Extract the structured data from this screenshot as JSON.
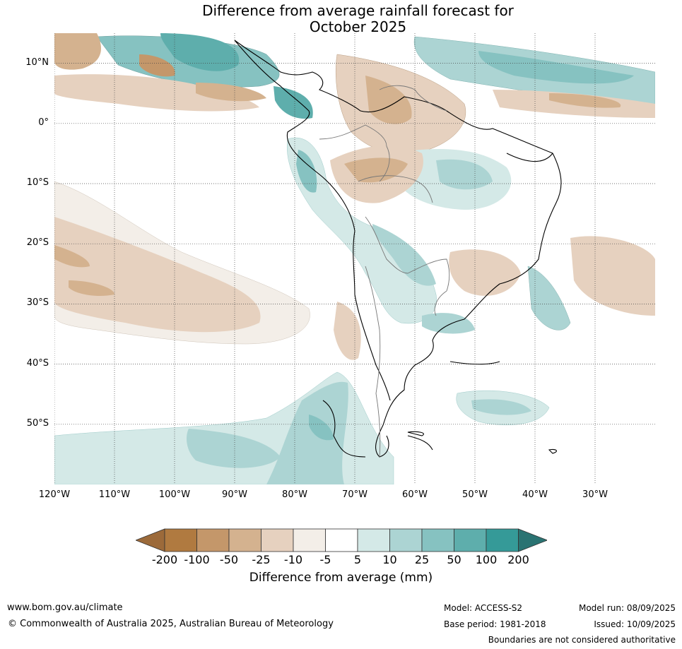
{
  "title": {
    "line1": "Difference from average rainfall forecast for",
    "line2": "October 2025"
  },
  "map": {
    "lon_range": [
      -120,
      -20
    ],
    "lat_range": [
      -60,
      15
    ],
    "lat_ticks": [
      {
        "lat": 10,
        "label": "10°N"
      },
      {
        "lat": 0,
        "label": "0°"
      },
      {
        "lat": -10,
        "label": "10°S"
      },
      {
        "lat": -20,
        "label": "20°S"
      },
      {
        "lat": -30,
        "label": "30°S"
      },
      {
        "lat": -40,
        "label": "40°S"
      },
      {
        "lat": -50,
        "label": "50°S"
      }
    ],
    "lon_ticks": [
      {
        "lon": -120,
        "label": "120°W"
      },
      {
        "lon": -110,
        "label": "110°W"
      },
      {
        "lon": -100,
        "label": "100°W"
      },
      {
        "lon": -90,
        "label": "90°W"
      },
      {
        "lon": -80,
        "label": "80°W"
      },
      {
        "lon": -70,
        "label": "70°W"
      },
      {
        "lon": -60,
        "label": "60°W"
      },
      {
        "lon": -50,
        "label": "50°W"
      },
      {
        "lon": -40,
        "label": "40°W"
      },
      {
        "lon": -30,
        "label": "30°W"
      }
    ],
    "grid": true
  },
  "legend": {
    "ticks": [
      "-200",
      "-100",
      "-50",
      "-25",
      "-10",
      "-5",
      "5",
      "10",
      "25",
      "50",
      "100",
      "200"
    ],
    "colors": [
      "#9c6a3a",
      "#b07a40",
      "#c4976a",
      "#d4b28f",
      "#e6d1bf",
      "#f3eee8",
      "#ffffff",
      "#d4e9e7",
      "#acd4d3",
      "#86c2c1",
      "#5eaeac",
      "#359a98",
      "#2a7372"
    ],
    "label": "Difference from average (mm)"
  },
  "footer": {
    "url": "www.bom.gov.au/climate",
    "copyright": "© Commonwealth of Australia 2025, Australian Bureau of Meteorology",
    "model": "Model: ACCESS-S2",
    "base_period": "Base period: 1981-2018",
    "model_run": "Model run: 08/09/2025",
    "issued": "Issued: 10/09/2025",
    "disclaimer": "Boundaries are not considered authoritative"
  }
}
